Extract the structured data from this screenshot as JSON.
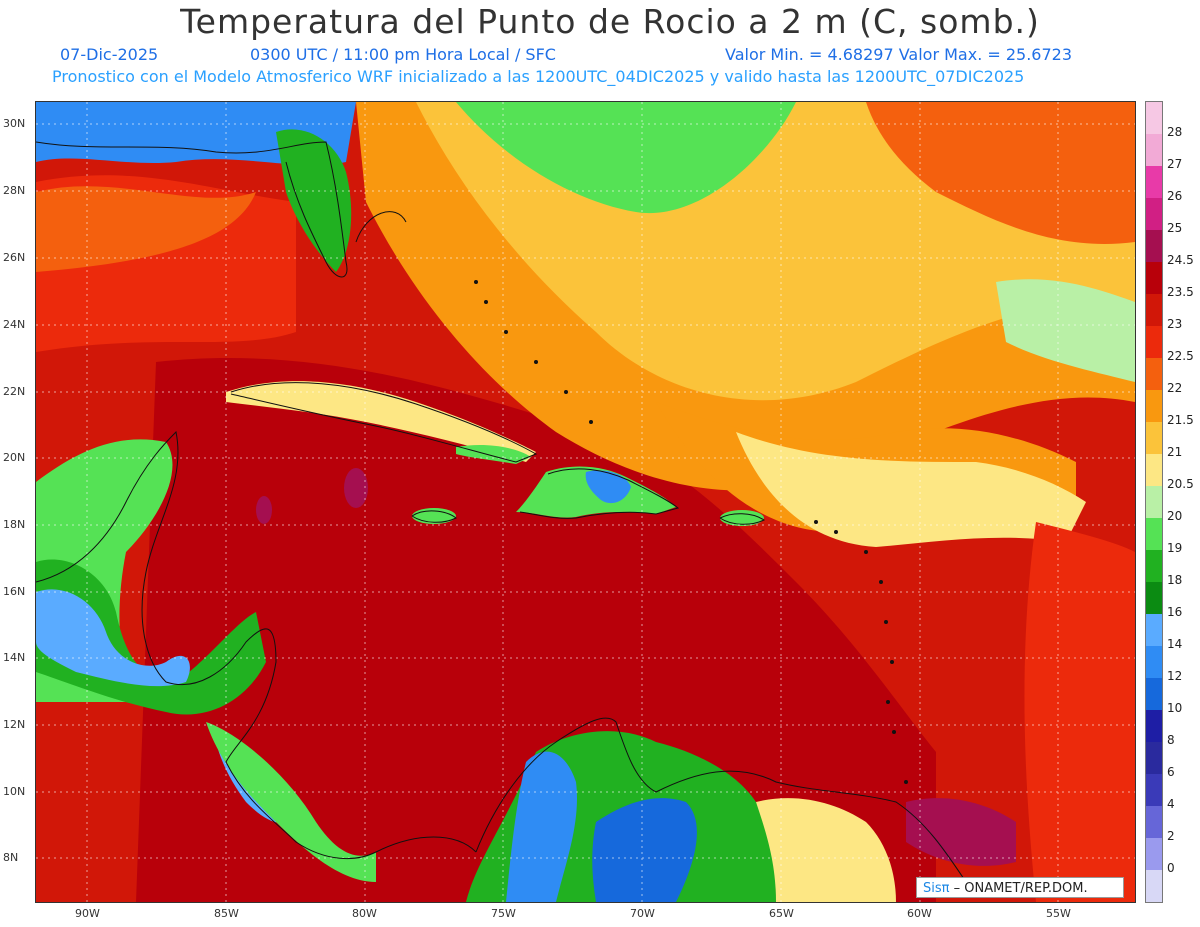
{
  "header": {
    "title": "Temperatura del Punto de Rocio a 2 m (C, somb.)",
    "date": "07-Dic-2025",
    "time": "0300 UTC / 11:00 pm Hora Local / SFC",
    "minmax": "Valor Min. = 4.68297  Valor Max. = 25.6723",
    "model": "Pronostico con el Modelo Atmosferico WRF inicializado a las 1200UTC_04DIC2025 y valido hasta las  1200UTC_07DIC2025"
  },
  "axes": {
    "lat_labels": [
      "30N",
      "28N",
      "26N",
      "24N",
      "22N",
      "20N",
      "18N",
      "16N",
      "14N",
      "12N",
      "10N",
      "8N"
    ],
    "lon_labels": [
      "90W",
      "85W",
      "80W",
      "75W",
      "70W",
      "65W",
      "60W",
      "55W"
    ]
  },
  "colorbar": {
    "labels": [
      "28",
      "27",
      "26",
      "25",
      "24.5",
      "23.5",
      "23",
      "22.5",
      "22",
      "21.5",
      "21",
      "20.5",
      "20",
      "19",
      "18",
      "16",
      "14",
      "12",
      "10",
      "8",
      "6",
      "4",
      "2",
      "0"
    ],
    "colors": [
      "#f2aad6",
      "#e83aa8",
      "#d11f84",
      "#a50f50",
      "#b8000a",
      "#d11708",
      "#ec2a0c",
      "#f4600e",
      "#f9980f",
      "#fbc33a",
      "#fde784",
      "#b9f0a6",
      "#55e255",
      "#21b121",
      "#0b8b12",
      "#5aabff",
      "#2f8cf4",
      "#1669dc",
      "#1e1ea5",
      "#2a2a9e",
      "#3a3ab8",
      "#6666d8",
      "#9a9aee",
      "#d8d8f6"
    ]
  },
  "credit": {
    "logo": "Sisπ",
    "text": " – ONAMET/REP.DOM."
  }
}
